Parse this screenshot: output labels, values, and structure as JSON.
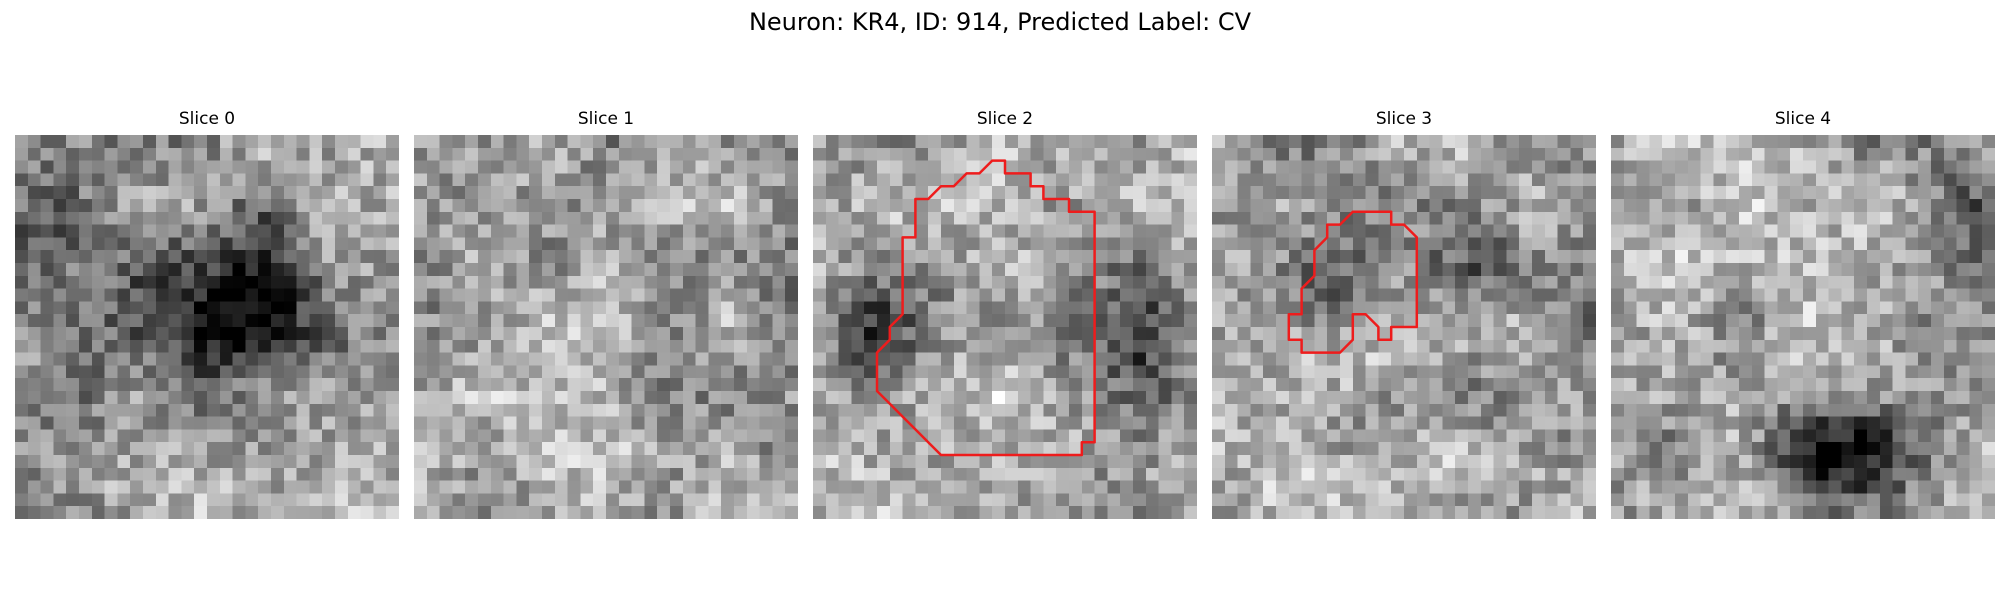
{
  "figure": {
    "title": "Neuron: KR4, ID: 914, Predicted Label: CV"
  },
  "colors": {
    "contour": "#ee1c1c",
    "background": "#ffffff"
  },
  "slices": [
    {
      "title": "Slice 0",
      "pattern": "dark-blob-center",
      "contour": []
    },
    {
      "title": "Slice 1",
      "pattern": "noise",
      "contour": []
    },
    {
      "title": "Slice 2",
      "pattern": "ring-lateral-dark",
      "contour": [
        [
          15,
          3
        ],
        [
          17,
          3
        ],
        [
          17,
          4
        ],
        [
          18,
          4
        ],
        [
          18,
          5
        ],
        [
          20,
          5
        ],
        [
          20,
          6
        ],
        [
          22,
          6
        ],
        [
          22,
          7
        ],
        [
          22,
          24
        ],
        [
          21,
          24
        ],
        [
          21,
          25
        ],
        [
          17,
          25
        ],
        [
          10,
          25
        ],
        [
          9,
          24
        ],
        [
          8,
          23
        ],
        [
          7,
          22
        ],
        [
          6,
          21
        ],
        [
          5,
          20
        ],
        [
          5,
          19
        ],
        [
          5,
          18
        ],
        [
          5,
          17
        ],
        [
          6,
          16
        ],
        [
          6,
          15
        ],
        [
          7,
          14
        ],
        [
          7,
          13
        ],
        [
          7,
          8
        ],
        [
          8,
          8
        ],
        [
          8,
          6
        ],
        [
          8,
          5
        ],
        [
          9,
          5
        ],
        [
          10,
          4
        ],
        [
          11,
          4
        ],
        [
          12,
          3
        ],
        [
          13,
          3
        ],
        [
          14,
          2
        ],
        [
          15,
          2
        ]
      ]
    },
    {
      "title": "Slice 3",
      "pattern": "ring-dark",
      "contour": [
        [
          12,
          6
        ],
        [
          14,
          6
        ],
        [
          14,
          7
        ],
        [
          15,
          7
        ],
        [
          16,
          8
        ],
        [
          16,
          9
        ],
        [
          16,
          15
        ],
        [
          15,
          15
        ],
        [
          14,
          15
        ],
        [
          14,
          16
        ],
        [
          13,
          16
        ],
        [
          13,
          15
        ],
        [
          12,
          14
        ],
        [
          11,
          14
        ],
        [
          11,
          15
        ],
        [
          11,
          16
        ],
        [
          10,
          17
        ],
        [
          8,
          17
        ],
        [
          7,
          17
        ],
        [
          7,
          16
        ],
        [
          6,
          16
        ],
        [
          6,
          15
        ],
        [
          6,
          14
        ],
        [
          7,
          14
        ],
        [
          7,
          13
        ],
        [
          7,
          12
        ],
        [
          8,
          11
        ],
        [
          8,
          10
        ],
        [
          8,
          9
        ],
        [
          9,
          8
        ],
        [
          9,
          7
        ],
        [
          10,
          7
        ],
        [
          11,
          6
        ]
      ]
    },
    {
      "title": "Slice 4",
      "pattern": "dark-bottom-right",
      "contour": []
    }
  ]
}
